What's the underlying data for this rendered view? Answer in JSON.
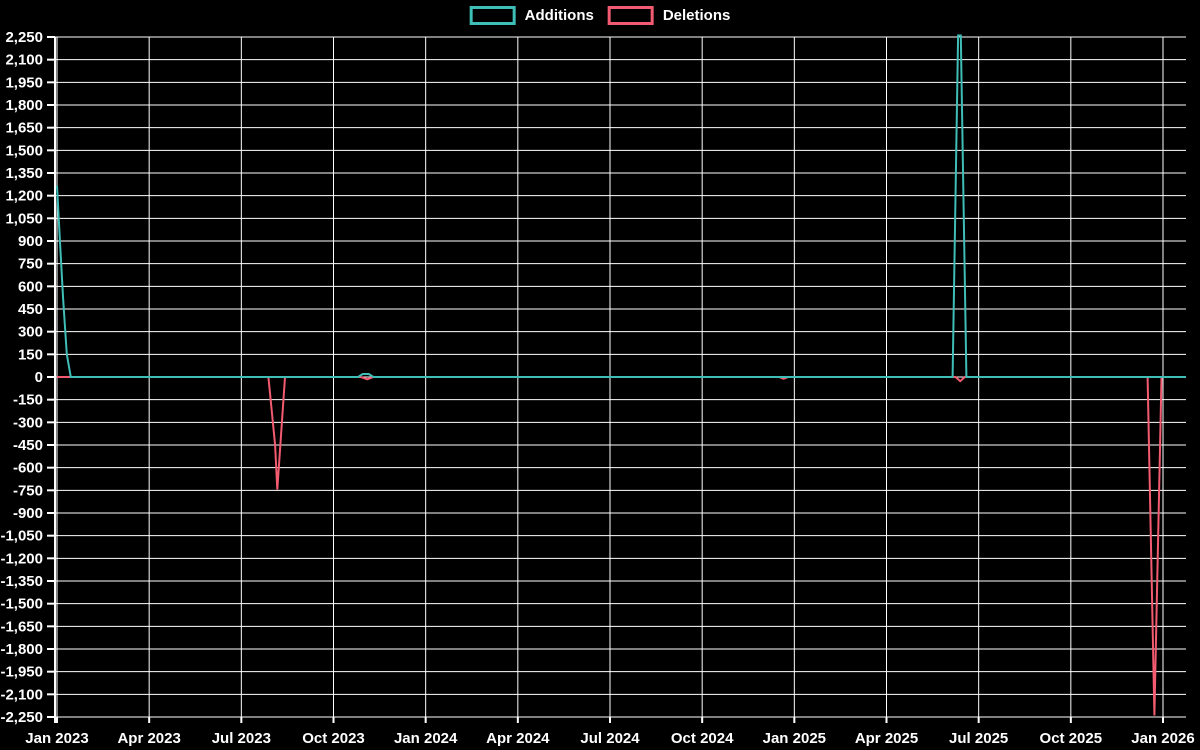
{
  "chart_data": {
    "type": "line",
    "legend_position": "top-center",
    "grid": true,
    "background_color": "#000000",
    "text_color": "#ffffff",
    "gridline_color": "#ffffff",
    "x_axis": {
      "ticks": [
        {
          "label": "Jan 2023",
          "month": 0
        },
        {
          "label": "Apr 2023",
          "month": 3
        },
        {
          "label": "Jul 2023",
          "month": 6
        },
        {
          "label": "Oct 2023",
          "month": 9
        },
        {
          "label": "Jan 2024",
          "month": 12
        },
        {
          "label": "Apr 2024",
          "month": 15
        },
        {
          "label": "Jul 2024",
          "month": 18
        },
        {
          "label": "Oct 2024",
          "month": 21
        },
        {
          "label": "Jan 2025",
          "month": 24
        },
        {
          "label": "Apr 2025",
          "month": 27
        },
        {
          "label": "Jul 2025",
          "month": 30
        },
        {
          "label": "Oct 2025",
          "month": 33
        },
        {
          "label": "Jan 2026",
          "month": 36
        }
      ],
      "range_months": [
        0,
        36.75
      ]
    },
    "y_axis": {
      "min": -2250,
      "max": 2250,
      "step": 150,
      "tick_labels": [
        "2,250",
        "2,100",
        "1,950",
        "1,800",
        "1,650",
        "1,500",
        "1,350",
        "1,200",
        "1,050",
        "900",
        "750",
        "600",
        "450",
        "300",
        "150",
        "0",
        "-150",
        "-300",
        "-450",
        "-600",
        "-750",
        "-900",
        "-1,050",
        "-1,200",
        "-1,350",
        "-1,500",
        "-1,650",
        "-1,800",
        "-1,950",
        "-2,100",
        "-2,250"
      ]
    },
    "series": [
      {
        "name": "Additions",
        "color": "#3fbdb7",
        "points": [
          [
            0,
            1265
          ],
          [
            0.1,
            880
          ],
          [
            0.2,
            520
          ],
          [
            0.32,
            150
          ],
          [
            0.45,
            0
          ],
          [
            9.8,
            0
          ],
          [
            9.95,
            20
          ],
          [
            10.15,
            20
          ],
          [
            10.3,
            0
          ],
          [
            29.15,
            0
          ],
          [
            29.33,
            2260
          ],
          [
            29.42,
            2260
          ],
          [
            29.6,
            0
          ],
          [
            36.75,
            0
          ]
        ]
      },
      {
        "name": "Deletions",
        "color": "#f25b70",
        "points": [
          [
            0,
            0
          ],
          [
            6.88,
            0
          ],
          [
            7.1,
            -450
          ],
          [
            7.17,
            -745
          ],
          [
            7.42,
            0
          ],
          [
            9.9,
            0
          ],
          [
            10.1,
            -15
          ],
          [
            10.3,
            0
          ],
          [
            23.5,
            0
          ],
          [
            23.65,
            -12
          ],
          [
            23.8,
            0
          ],
          [
            29.25,
            0
          ],
          [
            29.4,
            -28
          ],
          [
            29.55,
            0
          ],
          [
            35.5,
            0
          ],
          [
            35.72,
            -2240
          ],
          [
            35.95,
            0
          ],
          [
            36.75,
            0
          ]
        ]
      }
    ],
    "notable_values": {
      "additions_peaks": [
        {
          "when": "Jan 2023",
          "value": 1265
        },
        {
          "when": "Nov 2023",
          "value": 20
        },
        {
          "when": "Jun 2025",
          "value": 2260
        }
      ],
      "deletions_peaks": [
        {
          "when": "Aug 2023",
          "value": -745
        },
        {
          "when": "Nov 2023",
          "value": -15
        },
        {
          "when": "Dec 2024",
          "value": -12
        },
        {
          "when": "Jun 2025",
          "value": -28
        },
        {
          "when": "Dec 2025",
          "value": -2240
        }
      ]
    }
  }
}
